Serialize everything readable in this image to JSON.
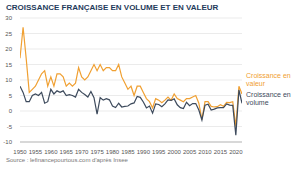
{
  "chart_data": {
    "type": "line",
    "title": "CROISSANCE FRANÇAISE EN VOLUME ET EN VALEUR",
    "annotations": [
      "Source : lefinancepourtous.com d'après Insee"
    ],
    "x": [
      1950,
      1951,
      1952,
      1953,
      1954,
      1955,
      1956,
      1957,
      1958,
      1959,
      1960,
      1961,
      1962,
      1963,
      1964,
      1965,
      1966,
      1967,
      1968,
      1969,
      1970,
      1971,
      1972,
      1973,
      1974,
      1975,
      1976,
      1977,
      1978,
      1979,
      1980,
      1981,
      1982,
      1983,
      1984,
      1985,
      1986,
      1987,
      1988,
      1989,
      1990,
      1991,
      1992,
      1993,
      1994,
      1995,
      1996,
      1997,
      1998,
      1999,
      2000,
      2001,
      2002,
      2003,
      2004,
      2005,
      2006,
      2007,
      2008,
      2009,
      2010,
      2011,
      2012,
      2013,
      2014,
      2015,
      2016,
      2017,
      2018,
      2019,
      2020,
      2021,
      2022
    ],
    "series": [
      {
        "name": "Croissance en valeur",
        "color": "#f0a032",
        "values": [
          17,
          27,
          17,
          6,
          7,
          8,
          10,
          12,
          13,
          8,
          11,
          8,
          12,
          12,
          11,
          8,
          9,
          8,
          9,
          14,
          11,
          10,
          11,
          13,
          15,
          13,
          15,
          13,
          14,
          14,
          13,
          13,
          15,
          11,
          9,
          7,
          8,
          5,
          8,
          8,
          6,
          4,
          3,
          1,
          4,
          3.5,
          2.7,
          3.5,
          4.5,
          3.5,
          5.5,
          4,
          3.5,
          3,
          4,
          4,
          4.5,
          5,
          2.5,
          -2.8,
          3,
          3,
          1.5,
          1.3,
          1.4,
          2,
          1.5,
          2.8,
          2.7,
          3,
          -5,
          8,
          5.5
        ]
      },
      {
        "name": "Croissance en volume",
        "color": "#3d4a5c",
        "values": [
          8,
          6,
          3,
          3,
          5,
          5.5,
          5,
          6,
          2.5,
          3,
          7,
          5.5,
          6.5,
          6,
          6.5,
          5,
          5.3,
          5,
          4.5,
          7,
          6,
          5.3,
          4.5,
          6.3,
          4.3,
          -1,
          4.3,
          3.5,
          4,
          3.6,
          1.6,
          1.1,
          2.5,
          1.3,
          1.5,
          1.6,
          2.3,
          2.6,
          4.7,
          4.4,
          2.9,
          1,
          1.6,
          -0.7,
          2.3,
          2.1,
          1.4,
          2.3,
          3.6,
          3.4,
          3.9,
          2,
          1.1,
          0.8,
          2.8,
          1.7,
          2.4,
          2.4,
          0.3,
          -2.9,
          1.9,
          2.2,
          0.3,
          0.6,
          1,
          1.1,
          1.1,
          2.3,
          1.9,
          1.8,
          -7.8,
          6.8,
          2.5
        ]
      }
    ],
    "xlim": [
      1950,
      2022
    ],
    "xticks": [
      1950,
      1955,
      1960,
      1965,
      1970,
      1975,
      1980,
      1985,
      1990,
      1995,
      2000,
      2005,
      2010,
      2015,
      2020
    ],
    "ylim": [
      -10,
      30
    ],
    "yticks": [
      -10,
      -5,
      0,
      5,
      10,
      15,
      20,
      25,
      30
    ],
    "grid": true,
    "legend": "right"
  }
}
